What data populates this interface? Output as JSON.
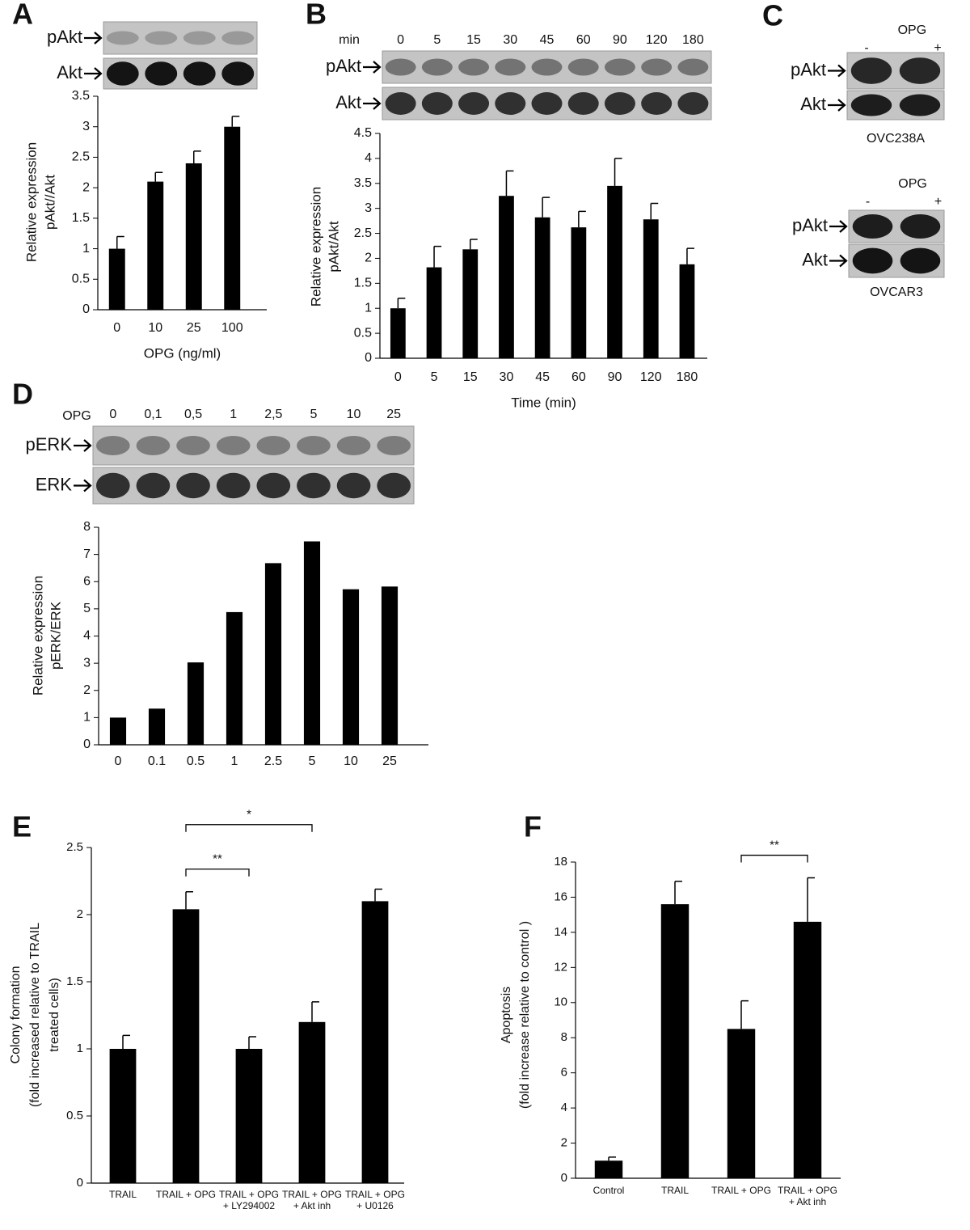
{
  "chart_data": [
    {
      "type": "bar",
      "panel": "A",
      "blot_labels": [
        "pAkt",
        "Akt"
      ],
      "categories": [
        "0",
        "10",
        "25",
        "100"
      ],
      "values": [
        1,
        2.1,
        2.4,
        3.0
      ],
      "errors": [
        0.2,
        0.15,
        0.2,
        0.17
      ],
      "ylim": [
        0,
        3.5
      ],
      "yticks": [
        0,
        0.5,
        1,
        1.5,
        2,
        2.5,
        3,
        3.5
      ],
      "xlabel": "OPG (ng/ml)",
      "ylabel": [
        "Relative expression",
        "pAkt//Akt"
      ],
      "color": "#000000"
    },
    {
      "type": "bar",
      "panel": "B",
      "blot_labels": [
        "pAkt",
        "Akt"
      ],
      "blot_lane_unit": "min",
      "categories": [
        "0",
        "5",
        "15",
        "30",
        "45",
        "60",
        "90",
        "120",
        "180"
      ],
      "values": [
        1,
        1.82,
        2.18,
        3.25,
        2.82,
        2.62,
        3.45,
        2.78,
        1.88
      ],
      "errors": [
        0.2,
        0.42,
        0.2,
        0.5,
        0.4,
        0.32,
        0.55,
        0.32,
        0.32
      ],
      "ylim": [
        0,
        4.5
      ],
      "yticks": [
        0,
        0.5,
        1,
        1.5,
        2,
        2.5,
        3,
        3.5,
        4,
        4.5
      ],
      "xlabel": "Time (min)",
      "ylabel": [
        "Relative expression",
        "pAkt/Akt"
      ],
      "color": "#000000"
    },
    {
      "type": "bar",
      "panel": "D",
      "blot_labels": [
        "pERK",
        "ERK"
      ],
      "blot_treatment": "OPG",
      "blot_lanes": [
        "0",
        "0,1",
        "0,5",
        "1",
        "2,5",
        "5",
        "10",
        "25"
      ],
      "categories": [
        "0",
        "0.1",
        "0.5",
        "1",
        "2.5",
        "5",
        "10",
        "25"
      ],
      "values": [
        1,
        1.33,
        3.03,
        4.88,
        6.68,
        7.48,
        5.72,
        5.82
      ],
      "ylim": [
        0,
        8
      ],
      "yticks": [
        0,
        1,
        2,
        3,
        4,
        5,
        6,
        7,
        8
      ],
      "ylabel": [
        "Relative expression",
        "pERK/ERK"
      ],
      "color": "#000000"
    },
    {
      "type": "bar",
      "panel": "E",
      "categories": [
        "TRAIL",
        "TRAIL + OPG",
        "TRAIL + OPG + LY294002",
        "TRAIL + OPG + Akt inh",
        "TRAIL + OPG + U0126"
      ],
      "values": [
        1,
        2.04,
        1.0,
        1.2,
        2.1
      ],
      "errors": [
        0.1,
        0.13,
        0.09,
        0.15,
        0.09
      ],
      "ylim": [
        0,
        2.5
      ],
      "yticks": [
        0,
        0.5,
        1,
        1.5,
        2,
        2.5
      ],
      "ylabel": [
        "Colony formation",
        "(fold increased relative to TRAIL",
        "treated cells)"
      ],
      "annotations": [
        {
          "text": "*",
          "between": [
            "TRAIL + OPG",
            "TRAIL + OPG + Akt inh"
          ]
        },
        {
          "text": "**",
          "between": [
            "TRAIL + OPG",
            "TRAIL + OPG + LY294002"
          ]
        }
      ],
      "color": "#000000"
    },
    {
      "type": "bar",
      "panel": "F",
      "categories": [
        "Control",
        "TRAIL",
        "TRAIL + OPG",
        "TRAIL + OPG + Akt inh"
      ],
      "values": [
        1,
        15.6,
        8.5,
        14.6
      ],
      "errors": [
        0.2,
        1.3,
        1.6,
        2.5
      ],
      "ylim": [
        0,
        18
      ],
      "yticks": [
        0,
        2,
        4,
        6,
        8,
        10,
        12,
        14,
        16,
        18
      ],
      "ylabel": [
        "Apoptosis",
        "(fold increase relative to control )"
      ],
      "annotations": [
        {
          "text": "**",
          "between": [
            "TRAIL + OPG",
            "TRAIL + OPG + Akt inh"
          ]
        }
      ],
      "color": "#000000"
    }
  ],
  "panel_c": {
    "panel": "C",
    "blots": [
      {
        "treatment": "OPG",
        "lanes": [
          "-",
          "+"
        ],
        "blot_labels": [
          "pAkt",
          "Akt"
        ],
        "cell_line": "OVC238A"
      },
      {
        "treatment": "OPG",
        "lanes": [
          "-",
          "+"
        ],
        "blot_labels": [
          "pAkt",
          "Akt"
        ],
        "cell_line": "OVCAR3"
      }
    ]
  }
}
